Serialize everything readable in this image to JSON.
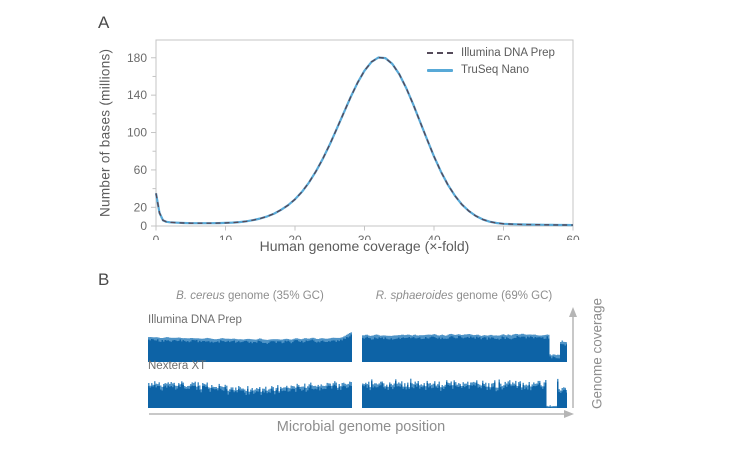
{
  "figure": {
    "panelA": {
      "label": "A",
      "ylabel": "Number of bases (millions)",
      "xlabel": "Human genome coverage (×-fold)",
      "legend": [
        {
          "label": "Illumina DNA Prep",
          "style": "dashed",
          "color": "#554a5a"
        },
        {
          "label": "TruSeq Nano",
          "style": "solid",
          "color": "#58a9d7"
        }
      ]
    },
    "panelB": {
      "label": "B",
      "columns": [
        {
          "species": "B. cereus",
          "rest": " genome (35% GC)"
        },
        {
          "species": "R. sphaeroides",
          "rest": " genome (69% GC)"
        }
      ],
      "rows": [
        {
          "label": "Illumina DNA Prep"
        },
        {
          "label": "Nextera XT"
        }
      ],
      "xlabel": "Microbial genome position",
      "ylabel": "Genome coverage"
    }
  },
  "chart_data": [
    {
      "type": "line",
      "title": "",
      "xlabel": "Human genome coverage (×-fold)",
      "ylabel": "Number of bases (millions)",
      "xlim": [
        0,
        60
      ],
      "ylim": [
        0,
        199
      ],
      "x_ticks": [
        0,
        10,
        20,
        30,
        40,
        50,
        60
      ],
      "y_ticks_labeled": [
        0,
        20,
        60,
        100,
        140,
        180
      ],
      "y_ticks_minor": [
        40,
        80,
        120,
        160
      ],
      "grid": false,
      "legend_position": "top-right",
      "axis_color": "#c4c4c4",
      "tick_text_color": "#6b6b6b",
      "x": [
        0,
        0.5,
        1,
        1.5,
        2,
        3,
        4,
        5,
        6,
        7,
        8,
        9,
        10,
        11,
        12,
        13,
        14,
        15,
        16,
        17,
        18,
        19,
        20,
        21,
        22,
        23,
        24,
        25,
        26,
        27,
        28,
        29,
        30,
        31,
        32,
        33,
        34,
        35,
        36,
        37,
        38,
        39,
        40,
        41,
        42,
        43,
        44,
        45,
        46,
        47,
        48,
        49,
        50,
        51,
        52,
        53,
        54,
        55,
        56,
        57,
        58,
        59,
        60
      ],
      "series": [
        {
          "name": "Illumina DNA Prep",
          "style": "dashed",
          "color": "#554a5a",
          "y": [
            35,
            14,
            6,
            4.5,
            4,
            3.5,
            3.2,
            3,
            3,
            3,
            3,
            3.1,
            3.3,
            3.6,
            4.2,
            5,
            6.3,
            8,
            10.3,
            13.3,
            17.3,
            22.3,
            28.6,
            36.6,
            46.4,
            58.2,
            71.9,
            87.3,
            103.9,
            121,
            137.8,
            153.3,
            166.2,
            175.6,
            180.3,
            179.6,
            173.4,
            162.4,
            147.6,
            130.2,
            111.4,
            92.5,
            74.5,
            58.2,
            44.1,
            32.4,
            23.1,
            16,
            10.8,
            7.1,
            4.6,
            3.2,
            2.4,
            2,
            1.8,
            1.6,
            1.5,
            1.4,
            1.3,
            1.2,
            1.1,
            1.05,
            1
          ]
        },
        {
          "name": "TruSeq Nano",
          "style": "solid",
          "color": "#58a9d7",
          "y": [
            35,
            14,
            6,
            4.5,
            4,
            3.5,
            3.2,
            3,
            3,
            3,
            3,
            3.1,
            3.3,
            3.6,
            4.2,
            5,
            6.3,
            8,
            10.3,
            13.3,
            17.3,
            22.3,
            28.6,
            36.6,
            46.4,
            58.2,
            71.9,
            87.3,
            103.9,
            121,
            137.8,
            153.3,
            166.2,
            175.6,
            180.3,
            179.6,
            173.4,
            162.4,
            147.6,
            130.2,
            111.4,
            92.5,
            74.5,
            58.2,
            44.1,
            32.4,
            23.1,
            16,
            10.8,
            7.1,
            4.6,
            3.2,
            2.4,
            2,
            1.8,
            1.6,
            1.5,
            1.4,
            1.3,
            1.2,
            1.1,
            1.05,
            1
          ]
        }
      ]
    },
    {
      "type": "coverage-tracks",
      "xlabel": "Microbial genome position",
      "ylabel": "Genome coverage",
      "colors": {
        "fill": "#0d63a6",
        "fringe": "#4f94c7"
      },
      "tracks": [
        {
          "id": "illumina-bcereus",
          "row": 0,
          "col": 0,
          "seed": 11,
          "baseline": 0.74,
          "noise": 0.05,
          "smooth": 2,
          "dip": {
            "center": 0.55,
            "width": 0.3,
            "depth": 0.07
          },
          "endRise": {
            "span": 0.06,
            "amount": 0.14
          }
        },
        {
          "id": "illumina-rsphaeroides",
          "row": 0,
          "col": 1,
          "seed": 22,
          "baseline": 0.8,
          "noise": 0.06,
          "smooth": 1,
          "endGap": {
            "from": 0.915,
            "to": 0.965,
            "level": 0.22
          },
          "endSpike": {
            "from": 0.97,
            "level": 0.62
          }
        },
        {
          "id": "nextera-bcereus",
          "row": 1,
          "col": 0,
          "seed": 33,
          "baseline": 0.7,
          "noise": 0.12,
          "smooth": 0,
          "dip": {
            "center": 0.52,
            "width": 0.16,
            "depth": 0.14
          }
        },
        {
          "id": "nextera-rsphaeroides",
          "row": 1,
          "col": 1,
          "seed": 44,
          "baseline": 0.72,
          "noise": 0.15,
          "smooth": 0,
          "endGap": {
            "from": 0.9,
            "to": 0.955,
            "level": 0.06
          },
          "endSpike": {
            "from": 0.96,
            "level": 0.55
          }
        }
      ]
    }
  ]
}
